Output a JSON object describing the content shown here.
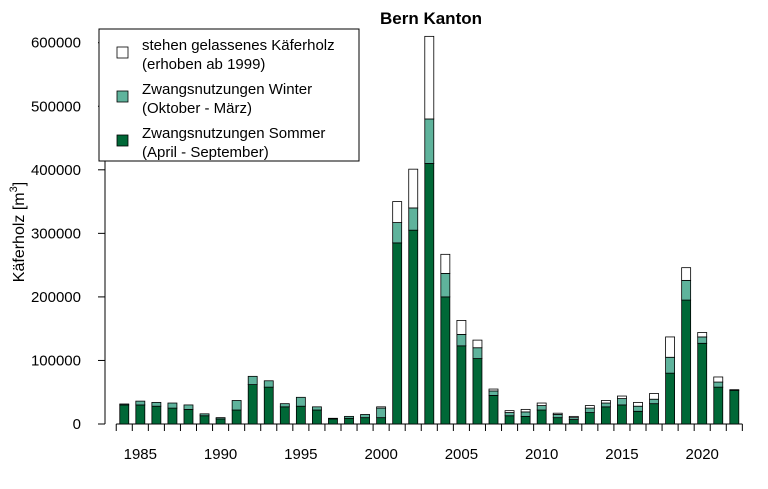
{
  "chart_data": {
    "type": "bar",
    "stacked": true,
    "title": "Bern Kanton",
    "ylabel": "Käferholz [m",
    "ylabel_sup": "3",
    "ylabel_close": "]",
    "xlabel": "",
    "ylim": [
      0,
      620000
    ],
    "xlim": [
      1982.8,
      2023.6
    ],
    "yticks": [
      0,
      100000,
      200000,
      300000,
      400000,
      500000,
      600000
    ],
    "xticks_labeled": [
      1985,
      1990,
      1995,
      2000,
      2005,
      2010,
      2015,
      2020
    ],
    "x": [
      1984,
      1985,
      1986,
      1987,
      1988,
      1989,
      1990,
      1991,
      1992,
      1993,
      1994,
      1995,
      1996,
      1997,
      1998,
      1999,
      2000,
      2001,
      2002,
      2003,
      2004,
      2005,
      2006,
      2007,
      2008,
      2009,
      2010,
      2011,
      2012,
      2013,
      2014,
      2015,
      2016,
      2017,
      2018,
      2019,
      2020,
      2021,
      2022
    ],
    "series": [
      {
        "name": "Zwangsnutzungen Sommer\n(April - September)",
        "color": "#006837",
        "values": [
          30000,
          30000,
          28000,
          25000,
          23000,
          13000,
          8000,
          22000,
          62000,
          58000,
          27000,
          28000,
          22000,
          8000,
          9000,
          10000,
          10000,
          285000,
          305000,
          410000,
          200000,
          123000,
          103000,
          45000,
          13000,
          12000,
          22000,
          10000,
          7000,
          18000,
          27000,
          30000,
          20000,
          32000,
          80000,
          195000,
          127000,
          58000,
          53000
        ]
      },
      {
        "name": "Zwangsnutzungen Winter\n(Oktober - März)",
        "color": "#5fb39c",
        "values": [
          1500,
          6000,
          6000,
          8000,
          7000,
          3000,
          2000,
          15000,
          13000,
          10000,
          5000,
          14000,
          5000,
          1000,
          3000,
          5000,
          15000,
          32000,
          35000,
          70000,
          37000,
          18000,
          17000,
          7000,
          5000,
          7000,
          7000,
          5000,
          3000,
          7000,
          6000,
          10000,
          8000,
          7000,
          25000,
          31000,
          10000,
          8000,
          0
        ]
      },
      {
        "name": "stehen gelassenes Käferholz\n(erhoben ab 1999)",
        "color": "#ffffff",
        "values": [
          0,
          0,
          0,
          0,
          0,
          0,
          0,
          0,
          0,
          0,
          0,
          0,
          0,
          0,
          0,
          0,
          2000,
          33000,
          61000,
          130000,
          30000,
          22000,
          12000,
          3000,
          3000,
          4000,
          4000,
          2000,
          2000,
          4000,
          4000,
          4000,
          6000,
          9000,
          32000,
          20000,
          7000,
          8000,
          1000
        ]
      }
    ],
    "legend": {
      "position": "top-left",
      "entries": [
        {
          "line1": "stehen gelassenes Käferholz",
          "line2": "(erhoben ab 1999)",
          "color": "#ffffff"
        },
        {
          "line1": "Zwangsnutzungen Winter",
          "line2": "(Oktober - März)",
          "color": "#5fb39c"
        },
        {
          "line1": "Zwangsnutzungen Sommer",
          "line2": "(April - September)",
          "color": "#006837"
        }
      ]
    },
    "grid": false
  }
}
